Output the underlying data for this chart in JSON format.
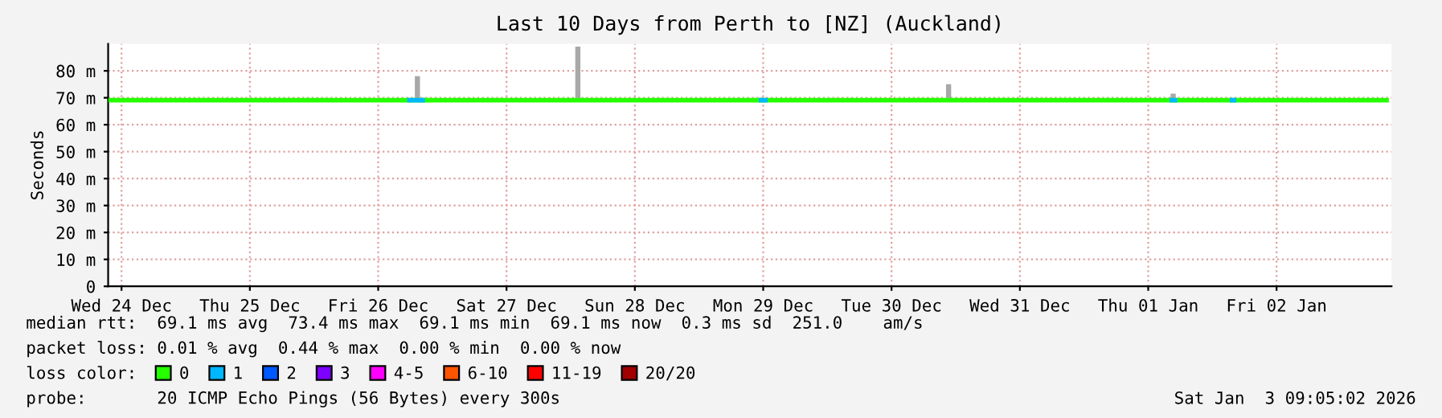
{
  "chart_data": {
    "type": "line",
    "title": "Last 10 Days from Perth to [NZ] (Auckland)",
    "ylabel": "Seconds",
    "xlim": [
      "2025-12-23T21:30",
      "2026-01-02T21:30"
    ],
    "xticks": [
      {
        "value": "2025-12-24",
        "label": "Wed 24 Dec"
      },
      {
        "value": "2025-12-25",
        "label": "Thu 25 Dec"
      },
      {
        "value": "2025-12-26",
        "label": "Fri 26 Dec"
      },
      {
        "value": "2025-12-27",
        "label": "Sat 27 Dec"
      },
      {
        "value": "2025-12-28",
        "label": "Sun 28 Dec"
      },
      {
        "value": "2025-12-29",
        "label": "Mon 29 Dec"
      },
      {
        "value": "2025-12-30",
        "label": "Tue 30 Dec"
      },
      {
        "value": "2025-12-31",
        "label": "Wed 31 Dec"
      },
      {
        "value": "2026-01-01",
        "label": "Thu 01 Jan"
      },
      {
        "value": "2026-01-02",
        "label": "Fri 02 Jan"
      }
    ],
    "ylim": [
      0,
      90
    ],
    "yticks": [
      {
        "value": 0,
        "label": "0"
      },
      {
        "value": 10,
        "label": "10 m"
      },
      {
        "value": 20,
        "label": "20 m"
      },
      {
        "value": 30,
        "label": "30 m"
      },
      {
        "value": 40,
        "label": "40 m"
      },
      {
        "value": 50,
        "label": "50 m"
      },
      {
        "value": 60,
        "label": "60 m"
      },
      {
        "value": 70,
        "label": "70 m"
      },
      {
        "value": 80,
        "label": "80 m"
      }
    ],
    "grid": true,
    "legend": "bottom",
    "series": [
      {
        "type": "bar",
        "color": "#a8a8a8",
        "x": [
          "2025-12-26T07:20",
          "2025-12-27T13:20",
          "2025-12-30T10:40",
          "2026-01-01T04:40"
        ],
        "base": [
          69,
          69,
          69,
          69
        ],
        "values": [
          9,
          20,
          6,
          2.5
        ]
      },
      {
        "name": "0",
        "color": "#26ff00",
        "x": [
          "2025-12-23T21:30",
          "2026-01-02T21:00"
        ],
        "values": [
          69.1,
          69.1
        ]
      },
      {
        "name": "1",
        "color": "#00b8ff",
        "x": [
          "2025-12-26T05:25",
          "2025-12-26T08:45",
          "2025-12-26T08:50",
          "2025-12-28T23:10",
          "2025-12-29T00:50",
          "2025-12-29T00:55",
          "2026-01-01T04:00",
          "2026-01-01T05:25",
          "2026-01-01T05:30",
          "2026-01-01T15:15",
          "2026-01-01T16:30"
        ],
        "values": [
          69.1,
          69.1,
          null,
          69.1,
          69.1,
          null,
          69.1,
          69.1,
          null,
          69.1,
          69.1
        ]
      },
      {
        "name": "2",
        "color": "#0059ff"
      },
      {
        "name": "3",
        "color": "#7e00ff"
      },
      {
        "name": "4-5",
        "color": "#ff00ff"
      },
      {
        "name": "6-10",
        "color": "#ff5500"
      },
      {
        "name": "11-19",
        "color": "#ff0000"
      },
      {
        "name": "20/20",
        "color": "#a10000"
      }
    ],
    "annotations": [
      "median rtt:  69.1 ms avg  73.4 ms max  69.1 ms min  69.1 ms now  0.3 ms sd  251.0    am/s",
      "packet loss: 0.01 % avg  0.44 % max  0.00 % min  0.00 % now",
      "loss color:",
      "probe:       20 ICMP Echo Pings (56 Bytes) every 300s",
      "Sat Jan  3 09:05:02 2026"
    ]
  }
}
